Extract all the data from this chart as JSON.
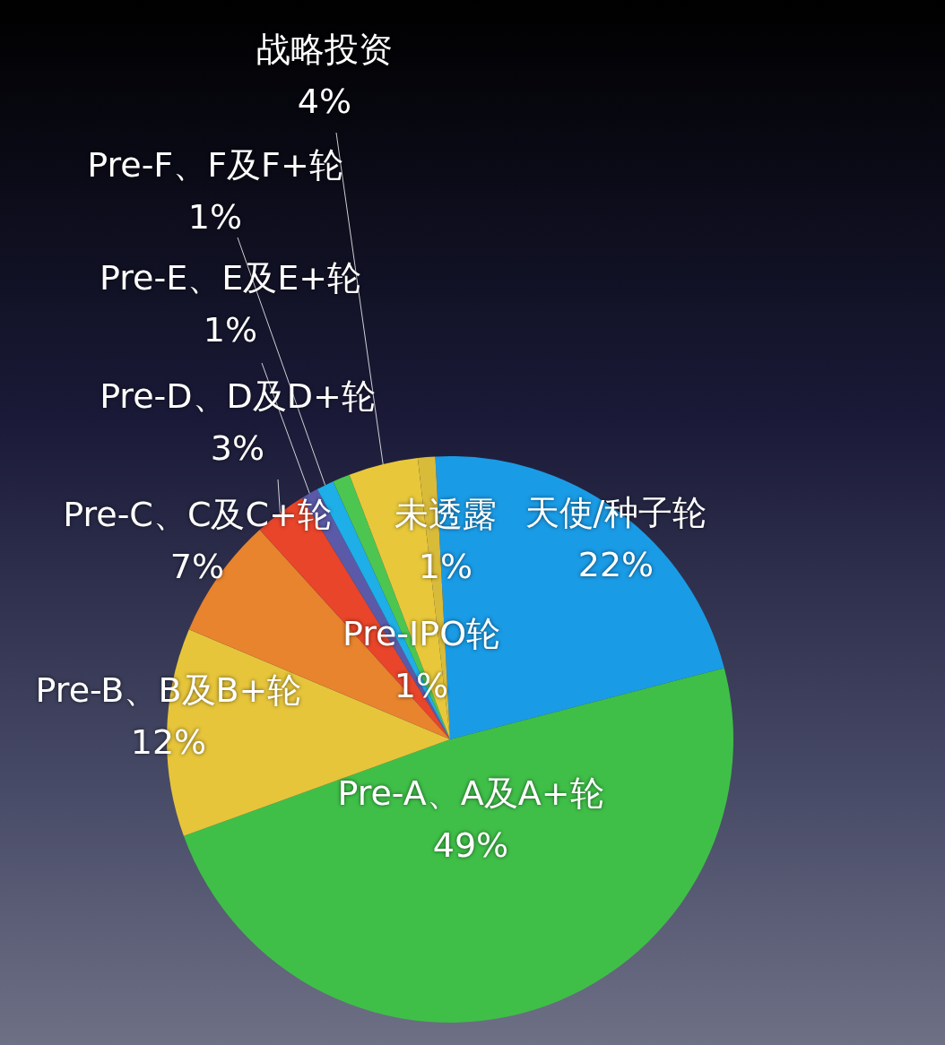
{
  "chart_data": {
    "type": "pie",
    "categories": [
      "天使/种子轮",
      "Pre-A、A及A+轮",
      "Pre-B、B及B+轮",
      "Pre-C、C及C+轮",
      "Pre-D、D及D+轮",
      "Pre-E、E及E+轮",
      "Pre-F、F及F+轮",
      "Pre-IPO轮",
      "战略投资",
      "未透露"
    ],
    "values": [
      22,
      49,
      12,
      7,
      3,
      1,
      1,
      1,
      4,
      1
    ],
    "value_labels": [
      "22%",
      "49%",
      "12%",
      "7%",
      "3%",
      "1%",
      "1%",
      "1%",
      "4%",
      "1%"
    ],
    "colors": [
      "#1a9be6",
      "#3fbf48",
      "#e6c53b",
      "#e8832e",
      "#e8452a",
      "#5b5aa8",
      "#1eaee8",
      "#4cc650",
      "#e8c83a",
      "#d9bb3a"
    ]
  }
}
